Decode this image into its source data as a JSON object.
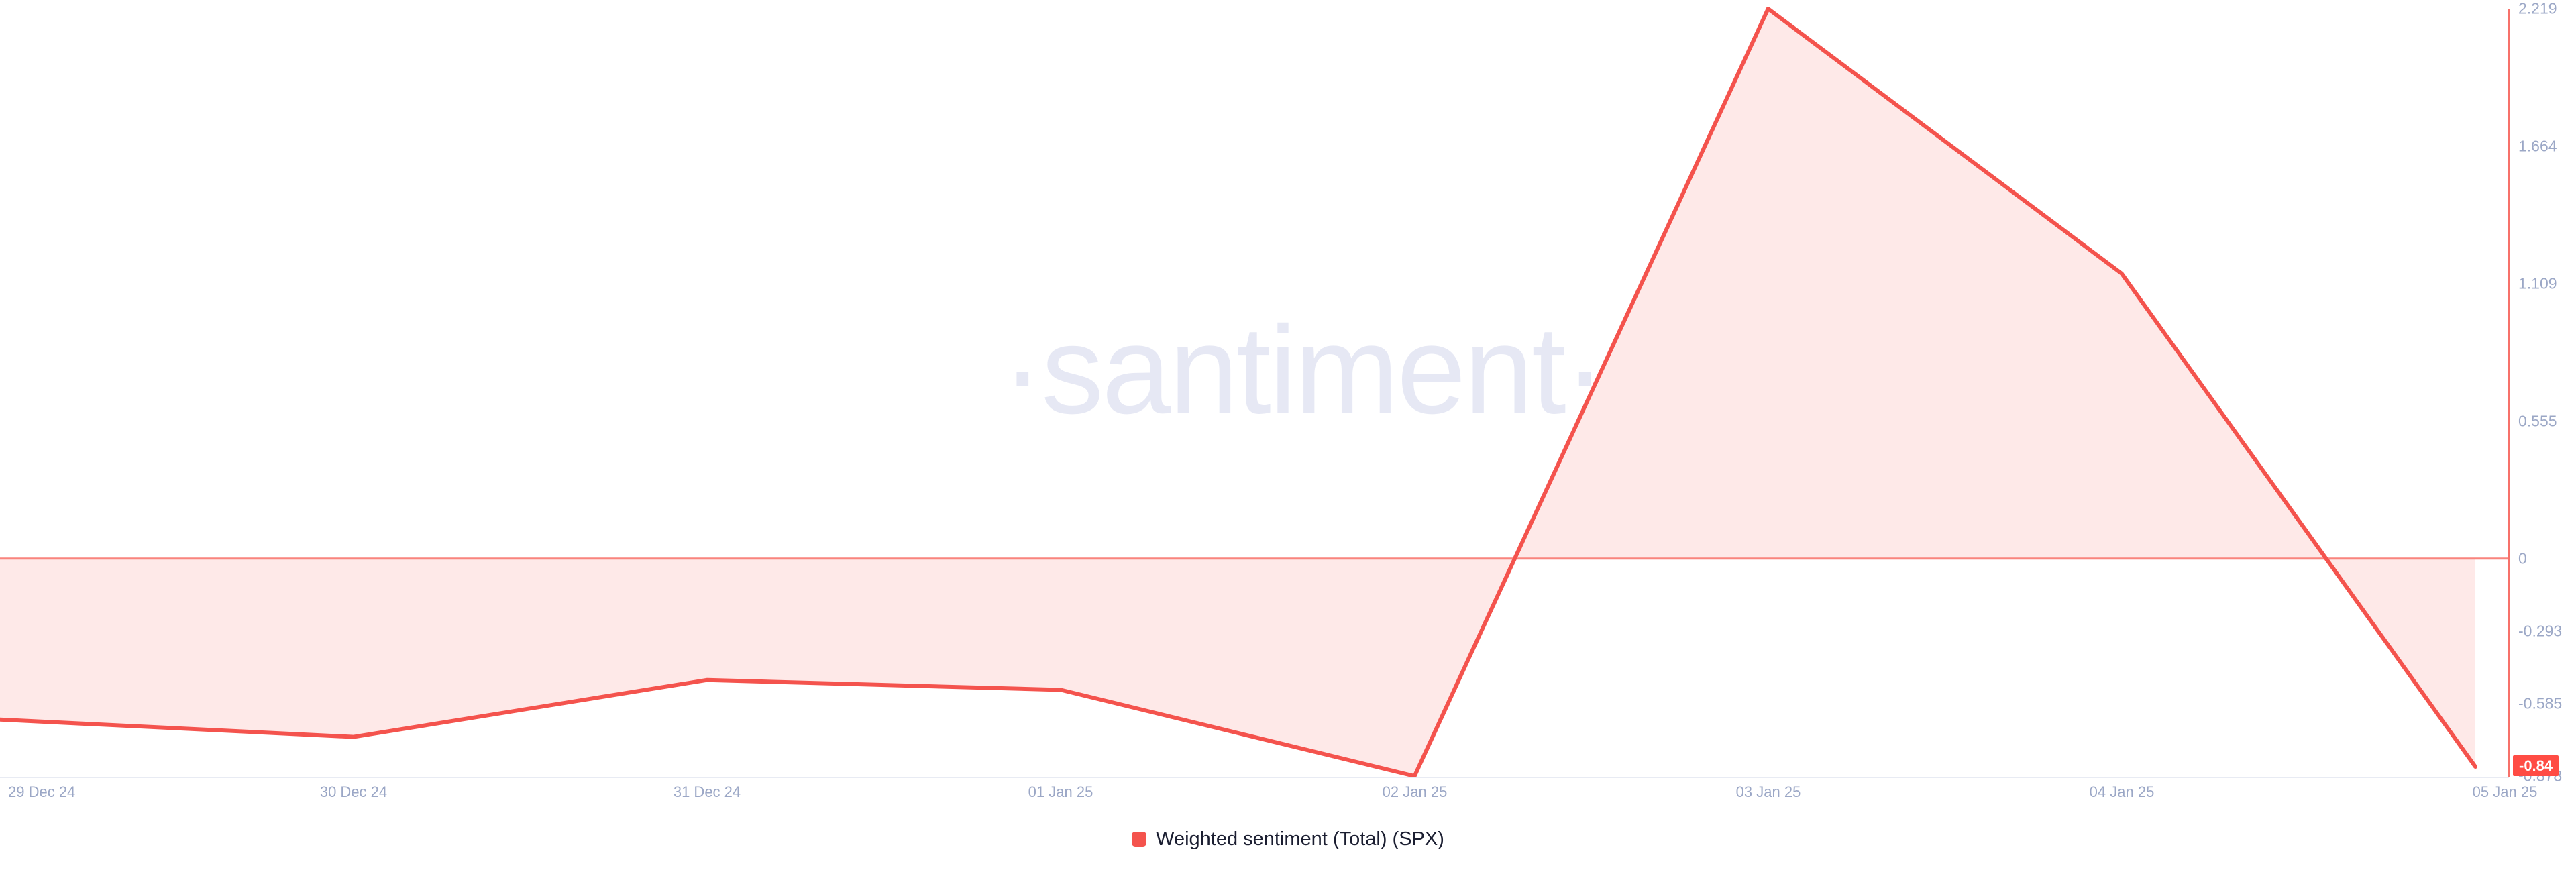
{
  "watermark": "·santiment·",
  "legend": {
    "label": "Weighted sentiment (Total) (SPX)"
  },
  "colors": {
    "line": "#f4534d",
    "area_fill": "rgba(244,83,77,0.13)",
    "zero_line": "#f9847d",
    "y_axis_line": "#f7716a",
    "x_axis_line": "#e8ebf3",
    "tick_text": "#9ba7c6",
    "badge_bg": "#ff4c44",
    "badge_text": "#ffffff",
    "legend_text": "#1b1e31",
    "watermark_text": "#e6e8f4"
  },
  "chart_data": {
    "type": "area",
    "title": "",
    "categories": [
      "29 Dec 24",
      "30 Dec 24",
      "31 Dec 24",
      "01 Jan 25",
      "02 Jan 25",
      "03 Jan 25",
      "04 Jan 25",
      "05 Jan 25"
    ],
    "series": [
      {
        "name": "Weighted sentiment (Total) (SPX)",
        "values": [
          -0.65,
          -0.72,
          -0.49,
          -0.53,
          -0.878,
          2.219,
          1.15,
          -0.84
        ]
      }
    ],
    "y_ticks": [
      "2.219",
      "1.664",
      "1.109",
      "0.555",
      "0",
      "-0.293",
      "-0.585",
      "-0.878"
    ],
    "ylim": [
      -0.878,
      2.219
    ],
    "baseline": 0,
    "last_value_label": "-0.84",
    "grid": false,
    "legend_position": "bottom-center",
    "y_axis_side": "right"
  }
}
